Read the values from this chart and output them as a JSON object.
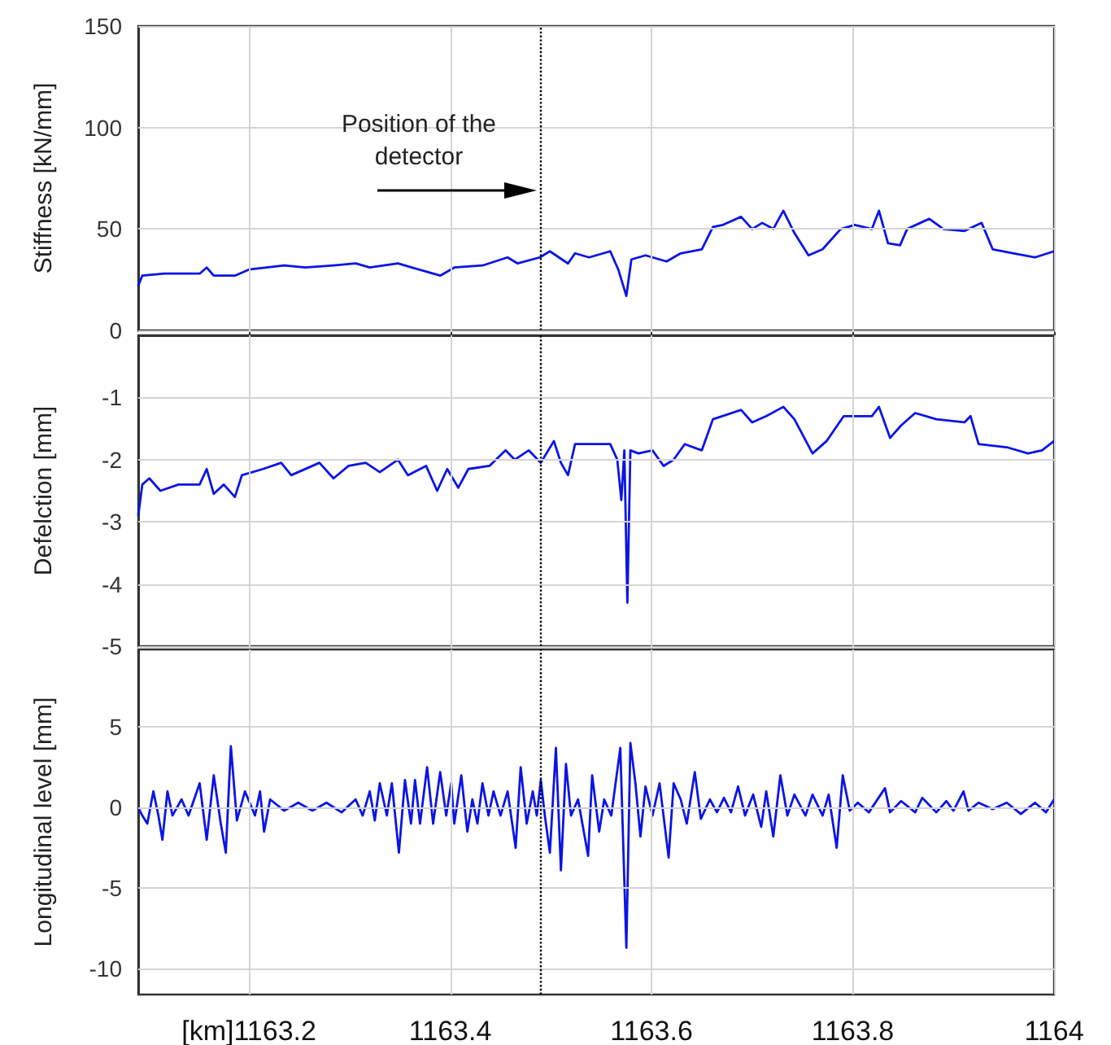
{
  "chart_data": [
    {
      "type": "line",
      "ylabel": "Stiffness [kN/mm]",
      "xlim": [
        1163.09,
        1164
      ],
      "ylim": [
        0,
        150
      ],
      "yticks": [
        0,
        50,
        100,
        150
      ],
      "xticks": [
        1163.2,
        1163.4,
        1163.6,
        1163.8,
        1164
      ],
      "tick_labels": "y",
      "grid": true,
      "marker": "none",
      "line_style": "solid",
      "ref_lines": [
        {
          "axis": "x",
          "value": 1163.49,
          "line_style": "dotted",
          "color": "#000000"
        }
      ],
      "annotations": [
        {
          "text": "Position of the detector",
          "x": 1163.49,
          "y": 69
        }
      ],
      "series": [
        {
          "color": "#0a14e6",
          "x": [
            1163.09,
            1163.094,
            1163.116,
            1163.151,
            1163.158,
            1163.165,
            1163.186,
            1163.2,
            1163.235,
            1163.256,
            1163.284,
            1163.306,
            1163.32,
            1163.348,
            1163.376,
            1163.39,
            1163.404,
            1163.432,
            1163.457,
            1163.467,
            1163.489,
            1163.499,
            1163.517,
            1163.524,
            1163.538,
            1163.559,
            1163.567,
            1163.575,
            1163.58,
            1163.594,
            1163.615,
            1163.629,
            1163.65,
            1163.661,
            1163.671,
            1163.689,
            1163.7,
            1163.71,
            1163.721,
            1163.731,
            1163.742,
            1163.756,
            1163.77,
            1163.788,
            1163.802,
            1163.819,
            1163.826,
            1163.835,
            1163.847,
            1163.854,
            1163.876,
            1163.89,
            1163.911,
            1163.928,
            1163.939,
            1163.96,
            1163.981,
            1164.0
          ],
          "values": [
            22,
            27,
            28,
            28,
            31,
            27,
            27,
            30,
            32,
            31,
            32,
            33,
            31,
            33,
            29,
            27,
            31,
            32,
            36,
            33,
            36,
            39,
            33,
            38,
            36,
            39,
            30,
            17,
            35,
            37,
            34,
            38,
            40,
            51,
            52,
            56,
            50,
            53,
            50,
            59,
            48,
            37,
            40,
            50,
            52,
            50,
            59,
            43,
            42,
            50,
            55,
            50,
            49,
            53,
            40,
            38,
            36,
            39
          ]
        }
      ]
    },
    {
      "type": "line",
      "ylabel": "Defelction [mm]",
      "xlim": [
        1163.09,
        1164
      ],
      "ylim": [
        -5,
        0
      ],
      "yticks": [
        -5,
        -4,
        -3,
        -2,
        -1
      ],
      "xticks": [
        1163.2,
        1163.4,
        1163.6,
        1163.8,
        1164
      ],
      "tick_labels": "y",
      "grid": true,
      "marker": "none",
      "line_style": "solid",
      "ref_lines": [
        {
          "axis": "x",
          "value": 1163.49,
          "line_style": "dotted",
          "color": "#000000"
        }
      ],
      "series": [
        {
          "color": "#0a14e6",
          "x": [
            1163.09,
            1163.094,
            1163.101,
            1163.112,
            1163.13,
            1163.151,
            1163.158,
            1163.165,
            1163.175,
            1163.186,
            1163.193,
            1163.214,
            1163.232,
            1163.242,
            1163.27,
            1163.284,
            1163.299,
            1163.316,
            1163.33,
            1163.348,
            1163.358,
            1163.376,
            1163.387,
            1163.397,
            1163.408,
            1163.418,
            1163.439,
            1163.455,
            1163.464,
            1163.478,
            1163.49,
            1163.503,
            1163.51,
            1163.517,
            1163.524,
            1163.545,
            1163.559,
            1163.566,
            1163.57,
            1163.573,
            1163.576,
            1163.579,
            1163.587,
            1163.601,
            1163.612,
            1163.622,
            1163.633,
            1163.65,
            1163.661,
            1163.689,
            1163.7,
            1163.714,
            1163.731,
            1163.742,
            1163.76,
            1163.774,
            1163.791,
            1163.819,
            1163.826,
            1163.837,
            1163.848,
            1163.862,
            1163.883,
            1163.911,
            1163.917,
            1163.925,
            1163.953,
            1163.974,
            1163.988,
            1164.0
          ],
          "values": [
            -2.9,
            -2.4,
            -2.3,
            -2.5,
            -2.4,
            -2.4,
            -2.15,
            -2.55,
            -2.4,
            -2.6,
            -2.25,
            -2.15,
            -2.05,
            -2.25,
            -2.05,
            -2.3,
            -2.1,
            -2.05,
            -2.2,
            -2.0,
            -2.25,
            -2.1,
            -2.5,
            -2.15,
            -2.45,
            -2.15,
            -2.1,
            -1.85,
            -2.0,
            -1.85,
            -2.05,
            -1.7,
            -2.05,
            -2.25,
            -1.75,
            -1.75,
            -1.75,
            -2.0,
            -2.65,
            -1.85,
            -4.3,
            -1.85,
            -1.9,
            -1.85,
            -2.1,
            -2.0,
            -1.75,
            -1.85,
            -1.35,
            -1.2,
            -1.4,
            -1.3,
            -1.15,
            -1.35,
            -1.9,
            -1.7,
            -1.3,
            -1.3,
            -1.15,
            -1.65,
            -1.45,
            -1.25,
            -1.35,
            -1.4,
            -1.3,
            -1.75,
            -1.8,
            -1.9,
            -1.85,
            -1.7
          ]
        }
      ]
    },
    {
      "type": "line",
      "ylabel": "Longitudinal level [mm]",
      "xlim": [
        1163.09,
        1164
      ],
      "ylim": [
        -11.6,
        9.8
      ],
      "yticks": [
        -10,
        -5,
        0,
        5
      ],
      "xticks": [
        {
          "value": 1163.2,
          "label": "[km]1163.2"
        },
        1163.4,
        1163.6,
        1163.8,
        1164
      ],
      "grid": true,
      "marker": "none",
      "line_style": "solid",
      "ref_lines": [
        {
          "axis": "x",
          "value": 1163.49,
          "line_style": "dotted",
          "color": "#000000"
        }
      ],
      "series": [
        {
          "color": "#0a14e6",
          "x": [
            1163.09,
            1163.094,
            1163.099,
            1163.105,
            1163.11,
            1163.114,
            1163.119,
            1163.124,
            1163.133,
            1163.14,
            1163.151,
            1163.158,
            1163.165,
            1163.172,
            1163.177,
            1163.182,
            1163.188,
            1163.196,
            1163.206,
            1163.211,
            1163.215,
            1163.221,
            1163.235,
            1163.249,
            1163.263,
            1163.277,
            1163.292,
            1163.306,
            1163.313,
            1163.32,
            1163.325,
            1163.33,
            1163.337,
            1163.342,
            1163.349,
            1163.355,
            1163.361,
            1163.365,
            1163.37,
            1163.377,
            1163.383,
            1163.39,
            1163.396,
            1163.401,
            1163.404,
            1163.411,
            1163.417,
            1163.422,
            1163.427,
            1163.432,
            1163.438,
            1163.443,
            1163.45,
            1163.457,
            1163.465,
            1163.47,
            1163.476,
            1163.482,
            1163.486,
            1163.49,
            1163.494,
            1163.499,
            1163.505,
            1163.51,
            1163.515,
            1163.52,
            1163.527,
            1163.537,
            1163.541,
            1163.548,
            1163.553,
            1163.56,
            1163.569,
            1163.575,
            1163.579,
            1163.584,
            1163.589,
            1163.594,
            1163.601,
            1163.608,
            1163.617,
            1163.622,
            1163.629,
            1163.635,
            1163.643,
            1163.649,
            1163.658,
            1163.665,
            1163.672,
            1163.679,
            1163.686,
            1163.693,
            1163.701,
            1163.709,
            1163.714,
            1163.721,
            1163.728,
            1163.735,
            1163.742,
            1163.753,
            1163.76,
            1163.77,
            1163.776,
            1163.784,
            1163.79,
            1163.797,
            1163.805,
            1163.816,
            1163.832,
            1163.837,
            1163.848,
            1163.862,
            1163.869,
            1163.883,
            1163.893,
            1163.9,
            1163.91,
            1163.915,
            1163.925,
            1163.939,
            1163.953,
            1163.967,
            1163.981,
            1163.992,
            1164.0
          ],
          "values": [
            0,
            -0.5,
            -1,
            1,
            -0.5,
            -2,
            1,
            -0.5,
            0.5,
            -0.5,
            1.5,
            -2,
            2,
            -1,
            -2.8,
            3.8,
            -0.8,
            1,
            -0.5,
            1,
            -1.5,
            0.5,
            -0.2,
            0.3,
            -0.2,
            0.3,
            -0.3,
            0.5,
            -0.5,
            1,
            -0.8,
            1.5,
            -0.5,
            1.5,
            -2.8,
            1.7,
            -1,
            1.7,
            -1,
            2.5,
            -1,
            2.2,
            -0.5,
            1.5,
            -1,
            2,
            -1.5,
            0.5,
            -1,
            1.5,
            -0.5,
            1,
            -0.5,
            1,
            -2.5,
            2.5,
            -1,
            1,
            -0.5,
            1.7,
            -0.5,
            -2.8,
            3.7,
            -3.9,
            2.7,
            -0.5,
            0.5,
            -3,
            2,
            -1.5,
            0.5,
            -0.5,
            3.7,
            -8.7,
            4,
            1.5,
            -1.8,
            1.3,
            -0.5,
            1.5,
            -3.1,
            1.5,
            0.5,
            -1,
            2.2,
            -0.7,
            0.5,
            -0.3,
            0.6,
            -0.3,
            1.3,
            -0.5,
            0.8,
            -1.2,
            1,
            -1.8,
            2,
            -0.5,
            0.8,
            -0.5,
            0.8,
            -0.5,
            0.8,
            -2.5,
            2,
            -0.2,
            0.3,
            -0.3,
            1.2,
            -0.3,
            0.4,
            -0.3,
            0.6,
            -0.3,
            0.4,
            -0.2,
            1,
            -0.2,
            0.3,
            -0.1,
            0.3,
            -0.4,
            0.3,
            -0.3,
            0.5
          ]
        }
      ]
    }
  ]
}
